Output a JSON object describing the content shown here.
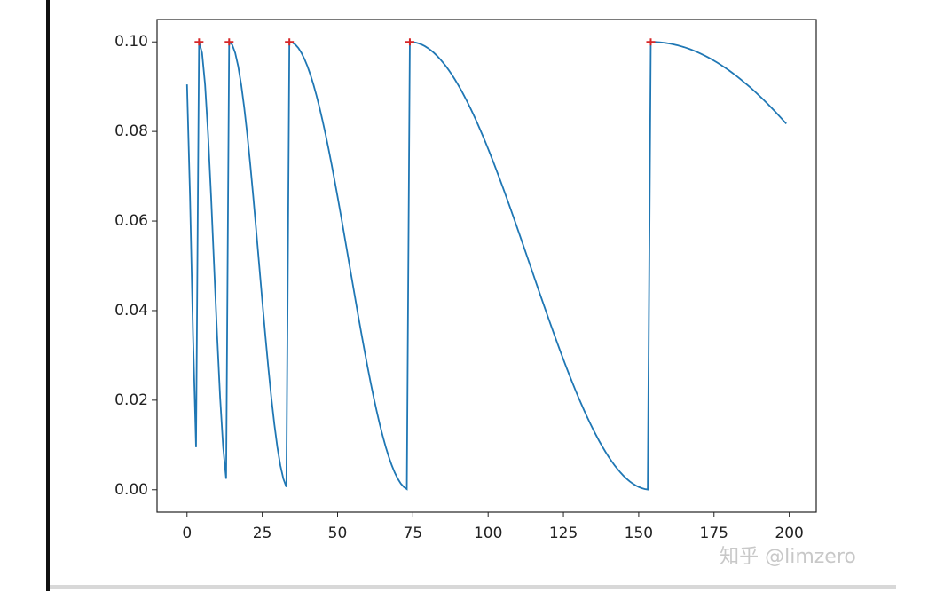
{
  "chart_data": {
    "type": "line",
    "color": "#1f77b4",
    "x": [
      0,
      1,
      2,
      3,
      4,
      5,
      6,
      7,
      8,
      9,
      10,
      11,
      12,
      13,
      14,
      15,
      16,
      17,
      18,
      19,
      20,
      21,
      22,
      23,
      24,
      25,
      26,
      27,
      28,
      29,
      30,
      31,
      32,
      33,
      34,
      35,
      36,
      37,
      38,
      39,
      40,
      41,
      42,
      43,
      44,
      45,
      46,
      47,
      48,
      49,
      50,
      51,
      52,
      53,
      54,
      55,
      56,
      57,
      58,
      59,
      60,
      61,
      62,
      63,
      64,
      65,
      66,
      67,
      68,
      69,
      70,
      71,
      72,
      73,
      74,
      75,
      76,
      77,
      78,
      79,
      80,
      81,
      82,
      83,
      84,
      85,
      86,
      87,
      88,
      89,
      90,
      91,
      92,
      93,
      94,
      95,
      96,
      97,
      98,
      99,
      100,
      101,
      102,
      103,
      104,
      105,
      106,
      107,
      108,
      109,
      110,
      111,
      112,
      113,
      114,
      115,
      116,
      117,
      118,
      119,
      120,
      121,
      122,
      123,
      124,
      125,
      126,
      127,
      128,
      129,
      130,
      131,
      132,
      133,
      134,
      135,
      136,
      137,
      138,
      139,
      140,
      141,
      142,
      143,
      144,
      145,
      146,
      147,
      148,
      149,
      150,
      151,
      152,
      153,
      154,
      155,
      156,
      157,
      158,
      159,
      160,
      161,
      162,
      163,
      164,
      165,
      166,
      167,
      168,
      169,
      170,
      171,
      172,
      173,
      174,
      175,
      176,
      177,
      178,
      179,
      180,
      181,
      182,
      183,
      184,
      185,
      186,
      187,
      188,
      189,
      190,
      191,
      192,
      193,
      194,
      195,
      196,
      197,
      198,
      199
    ],
    "values": [
      0.0905,
      0.0655,
      0.0345,
      0.0095,
      0.1,
      0.09755,
      0.09045,
      0.07939,
      0.06545,
      0.05,
      0.03455,
      0.02061,
      0.00955,
      0.00245,
      0.1,
      0.09938,
      0.09755,
      0.09455,
      0.09045,
      0.08536,
      0.07939,
      0.0727,
      0.06545,
      0.05782,
      0.05,
      0.04218,
      0.03455,
      0.0273,
      0.02061,
      0.01464,
      0.00955,
      0.00545,
      0.00245,
      0.00062,
      0.1,
      0.09985,
      0.09938,
      0.09862,
      0.09755,
      0.09619,
      0.09455,
      0.09263,
      0.09045,
      0.08802,
      0.08536,
      0.08247,
      0.07939,
      0.07612,
      0.0727,
      0.06913,
      0.06545,
      0.06167,
      0.05782,
      0.05392,
      0.05,
      0.04608,
      0.04218,
      0.03833,
      0.03455,
      0.03087,
      0.0273,
      0.02388,
      0.02061,
      0.01753,
      0.01464,
      0.01198,
      0.00955,
      0.00737,
      0.00545,
      0.00381,
      0.00245,
      0.00138,
      0.00062,
      0.00015,
      0.1,
      0.09996,
      0.09985,
      0.09965,
      0.09938,
      0.09904,
      0.09862,
      0.09812,
      0.09755,
      0.09691,
      0.09619,
      0.09541,
      0.09455,
      0.09363,
      0.09263,
      0.09157,
      0.09045,
      0.08927,
      0.08802,
      0.08672,
      0.08536,
      0.08394,
      0.08247,
      0.08095,
      0.07939,
      0.07778,
      0.07612,
      0.07443,
      0.0727,
      0.07093,
      0.06913,
      0.06731,
      0.06545,
      0.06357,
      0.06167,
      0.05975,
      0.05782,
      0.05588,
      0.05392,
      0.05196,
      0.05,
      0.04804,
      0.04608,
      0.04412,
      0.04218,
      0.04025,
      0.03833,
      0.03643,
      0.03455,
      0.03269,
      0.03087,
      0.02907,
      0.0273,
      0.02557,
      0.02388,
      0.02222,
      0.02061,
      0.01905,
      0.01753,
      0.01606,
      0.01464,
      0.01328,
      0.01198,
      0.01073,
      0.00955,
      0.00843,
      0.00737,
      0.00637,
      0.00545,
      0.00459,
      0.00381,
      0.00309,
      0.00245,
      0.00188,
      0.00138,
      0.00096,
      0.00062,
      0.00035,
      0.00015,
      4e-05,
      0.1,
      0.09999,
      0.09996,
      0.09991,
      0.09985,
      0.09976,
      0.09965,
      0.09953,
      0.09938,
      0.09922,
      0.09904,
      0.09884,
      0.09862,
      0.09838,
      0.09812,
      0.09785,
      0.09755,
      0.09724,
      0.09691,
      0.09656,
      0.09619,
      0.09581,
      0.09541,
      0.09499,
      0.09455,
      0.0941,
      0.09363,
      0.09314,
      0.09263,
      0.09211,
      0.09157,
      0.09097,
      0.09045,
      0.08987,
      0.08927,
      0.08865,
      0.08802,
      0.08738,
      0.08672,
      0.08604,
      0.08536,
      0.08465,
      0.08394,
      0.08321,
      0.08247,
      0.08172
    ],
    "markers": {
      "x": [
        4,
        14,
        34,
        74,
        154
      ],
      "values": [
        0.1,
        0.1,
        0.1,
        0.1,
        0.1
      ],
      "color": "#d62728"
    },
    "xlim": [
      -9.95,
      208.95
    ],
    "ylim": [
      -0.005,
      0.105
    ],
    "xticks": [
      0,
      25,
      50,
      75,
      100,
      125,
      150,
      175,
      200
    ],
    "yticks": [
      {
        "value": 0,
        "label": "0.00"
      },
      {
        "value": 0.02,
        "label": "0.02"
      },
      {
        "value": 0.04,
        "label": "0.04"
      },
      {
        "value": 0.06,
        "label": "0.06"
      },
      {
        "value": 0.08,
        "label": "0.08"
      },
      {
        "value": 0.1,
        "label": "0.10"
      }
    ],
    "watermark": "知乎 @limzero"
  }
}
